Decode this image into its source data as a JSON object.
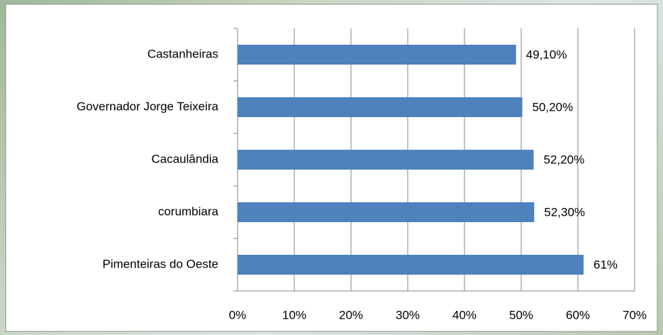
{
  "chart_data": {
    "type": "bar",
    "orientation": "horizontal",
    "categories": [
      "Castanheiras",
      "Governador Jorge Teixeira",
      "Cacaulândia",
      "corumbiara",
      "Pimenteiras do Oeste"
    ],
    "values": [
      49.1,
      50.2,
      52.2,
      52.3,
      61
    ],
    "value_labels": [
      "49,10%",
      "50,20%",
      "52,20%",
      "52,30%",
      "61%"
    ],
    "color": "#4f81bd",
    "xlim": [
      0,
      70
    ],
    "xticks": [
      {
        "value": 0,
        "label": "0%"
      },
      {
        "value": 10,
        "label": "10%"
      },
      {
        "value": 20,
        "label": "20%"
      },
      {
        "value": 30,
        "label": "30%"
      },
      {
        "value": 40,
        "label": "40%"
      },
      {
        "value": 50,
        "label": "50%"
      },
      {
        "value": 60,
        "label": "60%"
      },
      {
        "value": 70,
        "label": "70%"
      }
    ],
    "grid": true
  }
}
